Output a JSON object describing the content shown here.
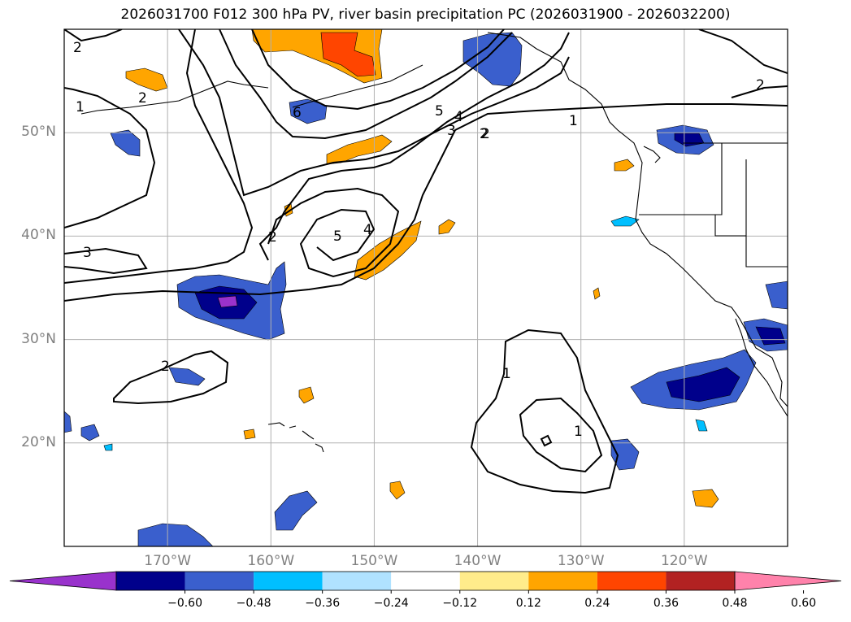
{
  "title": "2026031700 F012 300 hPa PV, river basin precipitation PC (2026031900 - 2026032200)",
  "map": {
    "lon_range": [
      -180,
      -110
    ],
    "lat_range": [
      10,
      60
    ],
    "gridlines": true,
    "lat_ticks": [
      {
        "value": 50,
        "label": "50°N"
      },
      {
        "value": 40,
        "label": "40°N"
      },
      {
        "value": 30,
        "label": "30°N"
      },
      {
        "value": 20,
        "label": "20°N"
      }
    ],
    "lon_ticks": [
      {
        "value": -170,
        "label": "170°W"
      },
      {
        "value": -160,
        "label": "160°W"
      },
      {
        "value": -150,
        "label": "150°W"
      },
      {
        "value": -140,
        "label": "140°W"
      },
      {
        "value": -130,
        "label": "130°W"
      },
      {
        "value": -120,
        "label": "120°W"
      }
    ],
    "pv_contour_labels": [
      "2",
      "2",
      "1",
      "2",
      "6",
      "5",
      "4",
      "3",
      "2",
      "1",
      "2",
      "3",
      "2",
      "5",
      "4",
      "1",
      "1",
      "2"
    ]
  },
  "colorbar": {
    "extend": "both",
    "colors": [
      "#9932cc",
      "#00008b",
      "#3a5fcd",
      "#00bfff",
      "#b0e2ff",
      "#ffffff",
      "#ffec8b",
      "#ffa500",
      "#ff4500",
      "#b22222",
      "#ff82ab"
    ],
    "tick_labels": [
      "−0.60",
      "−0.48",
      "−0.36",
      "−0.24",
      "−0.12",
      "0.12",
      "0.24",
      "0.36",
      "0.48",
      "0.60"
    ]
  },
  "shading_colors": {
    "dark_neg": "#00008b",
    "mid_neg": "#3a5fcd",
    "light_neg": "#00bfff",
    "core_neg": "#9932cc",
    "pos_low": "#ffa500",
    "pos_high": "#ff4500",
    "pos_edge": "#ffec8b"
  }
}
